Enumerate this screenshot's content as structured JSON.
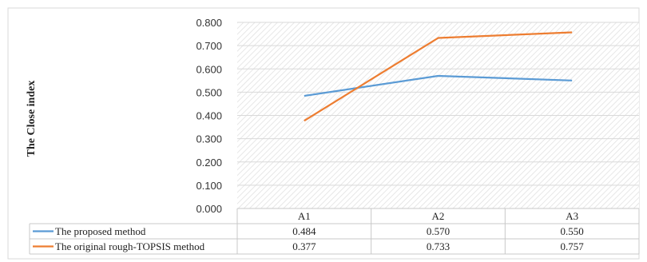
{
  "chart_data": {
    "type": "line",
    "title": "",
    "ylabel": "The Close index",
    "xlabel": "",
    "categories": [
      "A1",
      "A2",
      "A3"
    ],
    "ylim": [
      0,
      0.8
    ],
    "yticks": [
      "0.000",
      "0.100",
      "0.200",
      "0.300",
      "0.400",
      "0.500",
      "0.600",
      "0.700",
      "0.800"
    ],
    "grid": true,
    "legend": "data table below chart",
    "series": [
      {
        "name": "The proposed method",
        "values": [
          0.484,
          0.57,
          0.55
        ],
        "labels": [
          "0.484",
          "0.570",
          "0.550"
        ],
        "color": "#5b9bd5"
      },
      {
        "name": "The original rough-TOPSIS method",
        "values": [
          0.377,
          0.733,
          0.757
        ],
        "labels": [
          "0.377",
          "0.733",
          "0.757"
        ],
        "color": "#ed7d31"
      }
    ],
    "plot_background": "hatched light grey"
  }
}
